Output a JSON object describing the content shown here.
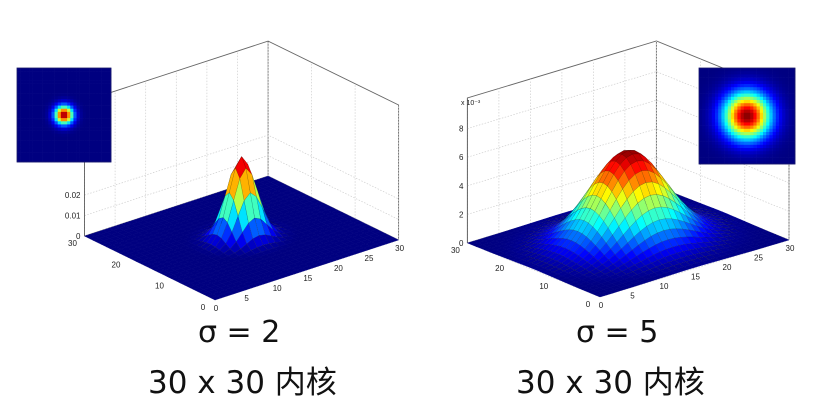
{
  "chart_data": [
    {
      "type": "surface",
      "sigma": 2,
      "grid_size": [
        30,
        30
      ],
      "center": [
        15,
        15
      ],
      "x_ticks": [
        "0",
        "5",
        "10",
        "15",
        "20",
        "25",
        "30"
      ],
      "y_ticks": [
        "0",
        "10",
        "20",
        "30"
      ],
      "z_ticks": [
        "0",
        "0.01",
        "0.02"
      ],
      "z_multiplier": "",
      "zlim": [
        0,
        0.045
      ],
      "peak_value": 0.0398,
      "grid": true,
      "colormap": "jet",
      "inset": "top-left",
      "caption": {
        "sigma_label": "σ = 2",
        "kernel_label": "30 x 30 内核"
      }
    },
    {
      "type": "surface",
      "sigma": 5,
      "grid_size": [
        30,
        30
      ],
      "center": [
        15,
        15
      ],
      "x_ticks": [
        "0",
        "5",
        "10",
        "15",
        "20",
        "25",
        "30"
      ],
      "y_ticks": [
        "0",
        "10",
        "20",
        "30"
      ],
      "z_ticks": [
        "0",
        "2",
        "4",
        "6",
        "8"
      ],
      "z_multiplier": "x 10⁻³",
      "zlim": [
        0,
        0.008
      ],
      "peak_value": 0.0064,
      "grid": true,
      "colormap": "jet",
      "inset": "top-right",
      "caption": {
        "sigma_label": "σ = 5",
        "kernel_label": "30 x 30 内核"
      }
    }
  ]
}
